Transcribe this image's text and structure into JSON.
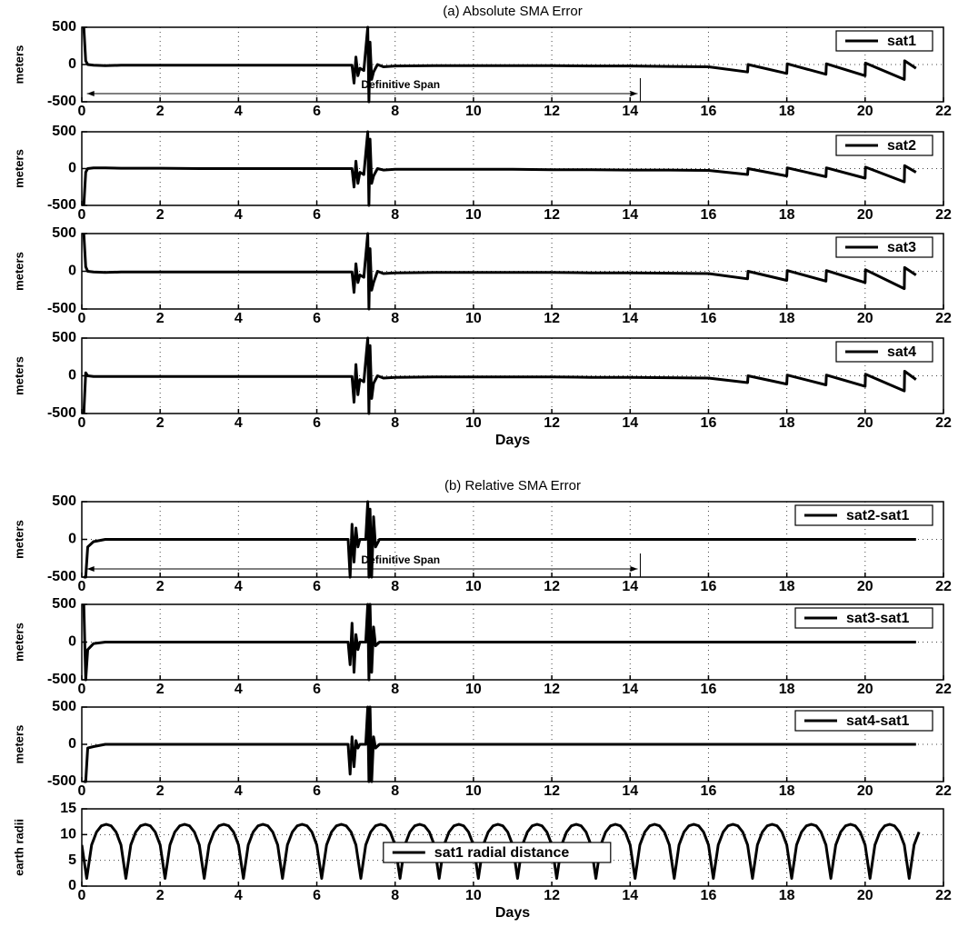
{
  "chart_data": [
    {
      "type": "line",
      "title": "(a) Absolute SMA Error",
      "ylabel": "meters",
      "annotation": "Definitive Span",
      "x": [
        0.05,
        0.1,
        0.15,
        0.3,
        0.6,
        1,
        2,
        3,
        4,
        5,
        6,
        6.9,
        6.95,
        7.0,
        7.05,
        7.1,
        7.2,
        7.3,
        7.33,
        7.36,
        7.4,
        7.45,
        7.55,
        7.7,
        8,
        9,
        10,
        11,
        12,
        13,
        14,
        15,
        16,
        17,
        17.01,
        18,
        18.01,
        19,
        19.01,
        20,
        20.01,
        21,
        21.01,
        21.3
      ],
      "series": [
        {
          "name": "sat1",
          "color": "#000000",
          "values": [
            500,
            50,
            0,
            -10,
            -15,
            -10,
            -10,
            -10,
            -10,
            -10,
            -10,
            -10,
            -250,
            100,
            -150,
            -50,
            -80,
            500,
            -500,
            300,
            -200,
            -100,
            0,
            -30,
            -20,
            -15,
            -15,
            -15,
            -15,
            -20,
            -20,
            -25,
            -30,
            -100,
            0,
            -120,
            10,
            -130,
            10,
            -150,
            20,
            -200,
            50,
            -50
          ]
        }
      ],
      "xlim": [
        0,
        22
      ],
      "xticks": [
        0,
        2,
        4,
        6,
        8,
        10,
        12,
        14,
        16,
        18,
        20,
        22
      ],
      "ylim": [
        -500,
        500
      ],
      "yticks": [
        -500,
        0,
        500
      ],
      "grid": true,
      "legend": "upper right"
    },
    {
      "type": "line",
      "ylabel": "meters",
      "x": [
        0.05,
        0.1,
        0.15,
        0.3,
        0.6,
        1,
        2,
        3,
        4,
        5,
        6,
        6.9,
        6.95,
        7.0,
        7.05,
        7.1,
        7.2,
        7.3,
        7.33,
        7.36,
        7.4,
        7.45,
        7.55,
        7.7,
        8,
        9,
        10,
        11,
        12,
        13,
        14,
        15,
        16,
        17,
        17.01,
        18,
        18.01,
        19,
        19.01,
        20,
        20.01,
        21,
        21.01,
        21.3
      ],
      "series": [
        {
          "name": "sat2",
          "color": "#000000",
          "values": [
            -500,
            -50,
            0,
            10,
            10,
            5,
            5,
            0,
            0,
            0,
            0,
            0,
            -250,
            100,
            -200,
            -50,
            -80,
            500,
            -500,
            400,
            -200,
            -100,
            0,
            -20,
            -10,
            -10,
            -10,
            -10,
            -15,
            -15,
            -20,
            -20,
            -25,
            -80,
            0,
            -100,
            10,
            -110,
            10,
            -130,
            20,
            -180,
            40,
            -50
          ]
        }
      ],
      "xlim": [
        0,
        22
      ],
      "xticks": [
        0,
        2,
        4,
        6,
        8,
        10,
        12,
        14,
        16,
        18,
        20,
        22
      ],
      "ylim": [
        -500,
        500
      ],
      "yticks": [
        -500,
        0,
        500
      ],
      "grid": true,
      "legend": "upper right"
    },
    {
      "type": "line",
      "ylabel": "meters",
      "x": [
        0.05,
        0.1,
        0.15,
        0.3,
        0.6,
        1,
        2,
        3,
        4,
        5,
        6,
        6.9,
        6.95,
        7.0,
        7.05,
        7.1,
        7.2,
        7.3,
        7.33,
        7.36,
        7.4,
        7.45,
        7.55,
        7.7,
        8,
        9,
        10,
        11,
        12,
        13,
        14,
        15,
        16,
        17,
        17.01,
        18,
        18.01,
        19,
        19.01,
        20,
        20.01,
        21,
        21.01,
        21.3
      ],
      "series": [
        {
          "name": "sat3",
          "color": "#000000",
          "values": [
            500,
            60,
            0,
            -10,
            -15,
            -10,
            -10,
            -10,
            -10,
            -10,
            -10,
            -10,
            -280,
            100,
            -150,
            -50,
            -80,
            500,
            -500,
            300,
            -250,
            -150,
            0,
            -30,
            -20,
            -15,
            -15,
            -15,
            -15,
            -20,
            -20,
            -25,
            -30,
            -100,
            0,
            -120,
            10,
            -130,
            10,
            -150,
            20,
            -230,
            50,
            -50
          ]
        }
      ],
      "xlim": [
        0,
        22
      ],
      "xticks": [
        0,
        2,
        4,
        6,
        8,
        10,
        12,
        14,
        16,
        18,
        20,
        22
      ],
      "ylim": [
        -500,
        500
      ],
      "yticks": [
        -500,
        0,
        500
      ],
      "grid": true,
      "legend": "upper right"
    },
    {
      "type": "line",
      "ylabel": "meters",
      "xlabel": "Days",
      "x": [
        0.05,
        0.1,
        0.15,
        0.3,
        0.6,
        1,
        2,
        3,
        4,
        5,
        6,
        6.9,
        6.95,
        7.0,
        7.05,
        7.1,
        7.2,
        7.3,
        7.33,
        7.36,
        7.4,
        7.45,
        7.55,
        7.7,
        8,
        9,
        10,
        11,
        12,
        13,
        14,
        15,
        16,
        17,
        17.01,
        18,
        18.01,
        19,
        19.01,
        20,
        20.01,
        21,
        21.01,
        21.3
      ],
      "series": [
        {
          "name": "sat4",
          "color": "#000000",
          "values": [
            -500,
            40,
            0,
            -10,
            -10,
            -10,
            -10,
            -10,
            -10,
            -10,
            -10,
            -10,
            -350,
            150,
            -250,
            -50,
            -80,
            500,
            -500,
            400,
            -300,
            -100,
            0,
            -30,
            -20,
            -15,
            -15,
            -15,
            -15,
            -20,
            -20,
            -25,
            -30,
            -90,
            0,
            -110,
            10,
            -120,
            10,
            -140,
            20,
            -200,
            60,
            -50
          ]
        }
      ],
      "xlim": [
        0,
        22
      ],
      "xticks": [
        0,
        2,
        4,
        6,
        8,
        10,
        12,
        14,
        16,
        18,
        20,
        22
      ],
      "ylim": [
        -500,
        500
      ],
      "yticks": [
        -500,
        0,
        500
      ],
      "grid": true,
      "legend": "upper right"
    },
    {
      "type": "line",
      "title": "(b) Relative SMA Error",
      "ylabel": "meters",
      "annotation": "Definitive Span",
      "x": [
        0.05,
        0.1,
        0.15,
        0.3,
        0.6,
        1,
        3,
        5,
        6.8,
        6.85,
        6.9,
        6.95,
        7.0,
        7.05,
        7.1,
        7.25,
        7.3,
        7.33,
        7.36,
        7.4,
        7.45,
        7.5,
        7.6,
        8,
        10,
        14,
        18,
        21.3
      ],
      "series": [
        {
          "name": "sat2-sat1",
          "color": "#000000",
          "values": [
            -500,
            -500,
            -100,
            -30,
            0,
            0,
            0,
            0,
            0,
            -500,
            200,
            -300,
            150,
            -100,
            0,
            0,
            500,
            -500,
            400,
            -500,
            300,
            -100,
            0,
            0,
            0,
            0,
            0,
            0
          ]
        }
      ],
      "xlim": [
        0,
        22
      ],
      "xticks": [
        0,
        2,
        4,
        6,
        8,
        10,
        12,
        14,
        16,
        18,
        20,
        22
      ],
      "ylim": [
        -500,
        500
      ],
      "yticks": [
        -500,
        0,
        500
      ],
      "grid": true,
      "legend": "upper right"
    },
    {
      "type": "line",
      "ylabel": "meters",
      "x": [
        0.05,
        0.1,
        0.15,
        0.3,
        0.6,
        1,
        3,
        5,
        6.8,
        6.85,
        6.9,
        6.95,
        7.0,
        7.05,
        7.1,
        7.25,
        7.3,
        7.33,
        7.36,
        7.4,
        7.45,
        7.5,
        7.6,
        8,
        10,
        14,
        18,
        21.3
      ],
      "series": [
        {
          "name": "sat3-sat1",
          "color": "#000000",
          "values": [
            500,
            -500,
            -100,
            -20,
            0,
            0,
            0,
            0,
            0,
            -300,
            250,
            -400,
            100,
            -100,
            0,
            0,
            500,
            -500,
            500,
            -400,
            200,
            -50,
            0,
            0,
            0,
            0,
            0,
            0
          ]
        }
      ],
      "xlim": [
        0,
        22
      ],
      "xticks": [
        0,
        2,
        4,
        6,
        8,
        10,
        12,
        14,
        16,
        18,
        20,
        22
      ],
      "ylim": [
        -500,
        500
      ],
      "yticks": [
        -500,
        0,
        500
      ],
      "grid": true,
      "legend": "upper right"
    },
    {
      "type": "line",
      "ylabel": "meters",
      "x": [
        0.05,
        0.1,
        0.15,
        0.3,
        0.6,
        1,
        3,
        5,
        6.8,
        6.85,
        6.9,
        6.95,
        7.0,
        7.05,
        7.1,
        7.25,
        7.3,
        7.33,
        7.36,
        7.4,
        7.45,
        7.5,
        7.6,
        8,
        10,
        14,
        18,
        21.3
      ],
      "series": [
        {
          "name": "sat4-sat1",
          "color": "#000000",
          "values": [
            -500,
            -500,
            -50,
            -30,
            0,
            0,
            0,
            0,
            0,
            -400,
            100,
            -300,
            50,
            -50,
            0,
            0,
            500,
            -500,
            500,
            -500,
            100,
            -50,
            0,
            0,
            0,
            0,
            0,
            0
          ]
        }
      ],
      "xlim": [
        0,
        22
      ],
      "xticks": [
        0,
        2,
        4,
        6,
        8,
        10,
        12,
        14,
        16,
        18,
        20,
        22
      ],
      "ylim": [
        -500,
        500
      ],
      "yticks": [
        -500,
        0,
        500
      ],
      "grid": true,
      "legend": "upper right"
    },
    {
      "type": "line",
      "ylabel": "earth radii",
      "xlabel": "Days",
      "x": [
        0,
        0.125,
        0.25,
        0.375,
        0.5,
        0.625,
        0.75,
        0.875,
        1,
        1.125,
        1.25,
        1.375,
        1.5,
        1.625,
        1.75,
        1.875,
        2,
        2.125,
        2.25,
        2.375,
        2.5,
        2.625,
        2.75,
        2.875,
        3,
        3.125,
        3.25,
        3.375,
        3.5,
        3.625,
        3.75,
        3.875,
        4,
        4.125,
        4.25,
        4.375,
        4.5,
        4.625,
        4.75,
        4.875,
        5,
        5.125,
        5.25,
        5.375,
        5.5,
        5.625,
        5.75,
        5.875,
        6,
        6.125,
        6.25,
        6.375,
        6.5,
        6.625,
        6.75,
        6.875,
        7,
        7.125,
        7.25,
        7.375,
        7.5,
        7.625,
        7.75,
        7.875,
        8,
        8.125,
        8.25,
        8.375,
        8.5,
        8.625,
        8.75,
        8.875,
        9,
        9.125,
        9.25,
        9.375,
        9.5,
        9.625,
        9.75,
        9.875,
        10,
        10.125,
        10.25,
        10.375,
        10.5,
        10.625,
        10.75,
        10.875,
        11,
        11.125,
        11.25,
        11.375,
        11.5,
        11.625,
        11.75,
        11.875,
        12,
        12.125,
        12.25,
        12.375,
        12.5,
        12.625,
        12.75,
        12.875,
        13,
        13.125,
        13.25,
        13.375,
        13.5,
        13.625,
        13.75,
        13.875,
        14,
        14.125,
        14.25,
        14.375,
        14.5,
        14.625,
        14.75,
        14.875,
        15,
        15.125,
        15.25,
        15.375,
        15.5,
        15.625,
        15.75,
        15.875,
        16,
        16.125,
        16.25,
        16.375,
        16.5,
        16.625,
        16.75,
        16.875,
        17,
        17.125,
        17.25,
        17.375,
        17.5,
        17.625,
        17.75,
        17.875,
        18,
        18.125,
        18.25,
        18.375,
        18.5,
        18.625,
        18.75,
        18.875,
        19,
        19.125,
        19.25,
        19.375,
        19.5,
        19.625,
        19.75,
        19.875,
        20,
        20.125,
        20.25,
        20.375,
        20.5,
        20.625,
        20.75,
        20.875,
        21,
        21.125,
        21.25,
        21.375
      ],
      "series": [
        {
          "name": "sat1 radial distance",
          "color": "#000000",
          "values": [
            8,
            1.5,
            8,
            10.5,
            11.7,
            12,
            11.7,
            10.5,
            8,
            1.5,
            8,
            10.5,
            11.7,
            12,
            11.7,
            10.5,
            8,
            1.5,
            8,
            10.5,
            11.7,
            12,
            11.7,
            10.5,
            8,
            1.5,
            8,
            10.5,
            11.7,
            12,
            11.7,
            10.5,
            8,
            1.5,
            8,
            10.5,
            11.7,
            12,
            11.7,
            10.5,
            8,
            1.5,
            8,
            10.5,
            11.7,
            12,
            11.7,
            10.5,
            8,
            1.5,
            8,
            10.5,
            11.7,
            12,
            11.7,
            10.5,
            8,
            1.5,
            8,
            10.5,
            11.7,
            12,
            11.7,
            10.5,
            8,
            1.5,
            8,
            10.5,
            11.7,
            12,
            11.7,
            10.5,
            8,
            1.5,
            8,
            10.5,
            11.7,
            12,
            11.7,
            10.5,
            8,
            1.5,
            8,
            10.5,
            11.7,
            12,
            11.7,
            10.5,
            8,
            1.5,
            8,
            10.5,
            11.7,
            12,
            11.7,
            10.5,
            8,
            1.5,
            8,
            10.5,
            11.7,
            12,
            11.7,
            10.5,
            8,
            1.5,
            8,
            10.5,
            11.7,
            12,
            11.7,
            10.5,
            8,
            1.5,
            8,
            10.5,
            11.7,
            12,
            11.7,
            10.5,
            8,
            1.5,
            8,
            10.5,
            11.7,
            12,
            11.7,
            10.5,
            8,
            1.5,
            8,
            10.5,
            11.7,
            12,
            11.7,
            10.5,
            8,
            1.5,
            8,
            10.5,
            11.7,
            12,
            11.7,
            10.5,
            8,
            1.5,
            8,
            10.5,
            11.7,
            12,
            11.7,
            10.5,
            8,
            1.5,
            8,
            10.5,
            11.7,
            12,
            11.7,
            10.5,
            8,
            1.5,
            8,
            10.5,
            11.7,
            12,
            11.7,
            10.5,
            8,
            1.5,
            8,
            10.5
          ]
        }
      ],
      "xlim": [
        0,
        22
      ],
      "xticks": [
        0,
        2,
        4,
        6,
        8,
        10,
        12,
        14,
        16,
        18,
        20,
        22
      ],
      "ylim": [
        0,
        15
      ],
      "yticks": [
        0,
        5,
        10,
        15
      ],
      "grid": true,
      "legend": "lower center"
    }
  ]
}
